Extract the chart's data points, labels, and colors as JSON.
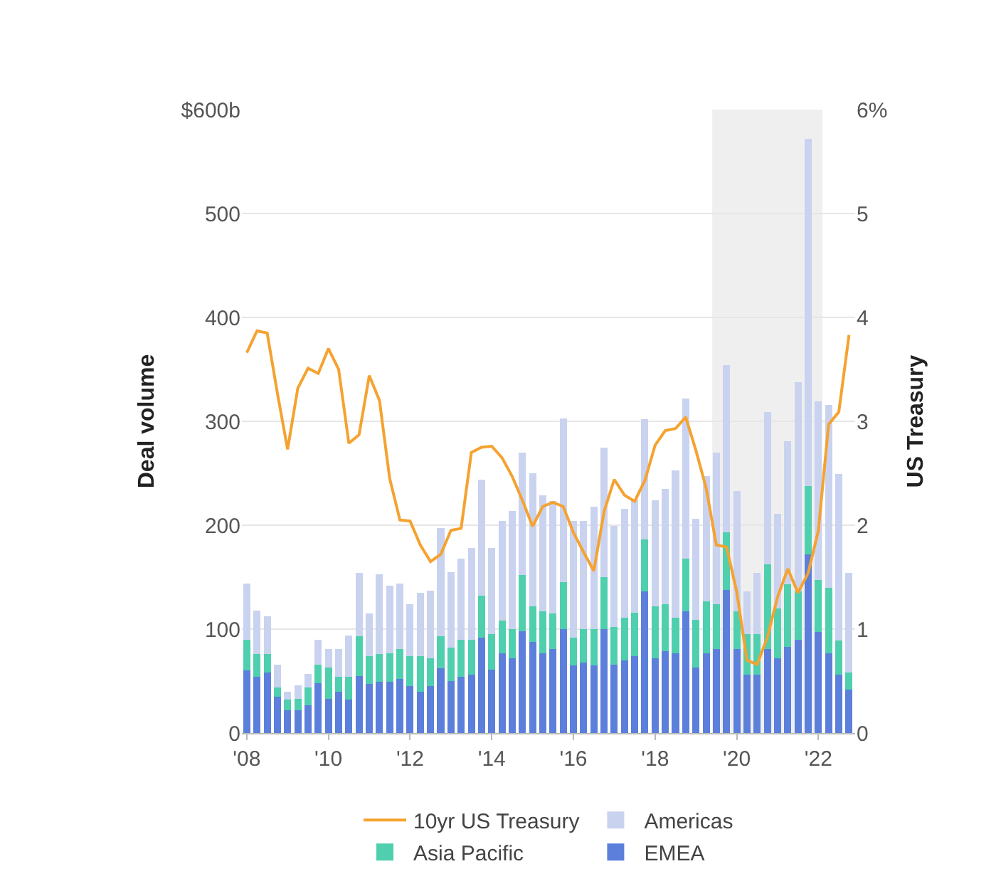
{
  "chart_data": {
    "type": "bar",
    "stacked": true,
    "x": [
      2008,
      2008.25,
      2008.5,
      2008.75,
      2009,
      2009.25,
      2009.5,
      2009.75,
      2010,
      2010.25,
      2010.5,
      2010.75,
      2011,
      2011.25,
      2011.5,
      2011.75,
      2012,
      2012.25,
      2012.5,
      2012.75,
      2013,
      2013.25,
      2013.5,
      2013.75,
      2014,
      2014.25,
      2014.5,
      2014.75,
      2015,
      2015.25,
      2015.5,
      2015.75,
      2016,
      2016.25,
      2016.5,
      2016.75,
      2017,
      2017.25,
      2017.5,
      2017.75,
      2018,
      2018.25,
      2018.5,
      2018.75,
      2019,
      2019.25,
      2019.5,
      2019.75,
      2020,
      2020.25,
      2020.5,
      2020.75,
      2021,
      2021.25,
      2021.5,
      2021.75,
      2022,
      2022.25,
      2022.5,
      2022.75
    ],
    "series": [
      {
        "name": "EMEA",
        "color": "#5b7fdb",
        "values": [
          60,
          54,
          58,
          35,
          22,
          22,
          27,
          48,
          33,
          40,
          32,
          55,
          47,
          49,
          49,
          52,
          45,
          40,
          45,
          62,
          50,
          54,
          56,
          92,
          61,
          77,
          72,
          98,
          88,
          77,
          81,
          100,
          65,
          68,
          65,
          100,
          66,
          70,
          74,
          136,
          72,
          79,
          77,
          117,
          63,
          77,
          81,
          138,
          81,
          56,
          56,
          81,
          72,
          83,
          90,
          172,
          97,
          77,
          56,
          42
        ]
      },
      {
        "name": "Asia Pacific",
        "color": "#4fcfae",
        "values": [
          30,
          22,
          18,
          9,
          10,
          11,
          17,
          18,
          30,
          14,
          22,
          38,
          27,
          27,
          28,
          29,
          29,
          34,
          27,
          31,
          32,
          36,
          34,
          40,
          34,
          31,
          28,
          54,
          34,
          40,
          34,
          45,
          27,
          32,
          35,
          50,
          36,
          41,
          42,
          50,
          50,
          45,
          34,
          51,
          46,
          50,
          43,
          55,
          36,
          39,
          39,
          81,
          48,
          60,
          46,
          66,
          50,
          63,
          33,
          16
        ]
      },
      {
        "name": "Americas",
        "color": "#c9d3f0",
        "values": [
          54,
          42,
          36,
          22,
          8,
          13,
          13,
          24,
          18,
          27,
          40,
          61,
          41,
          77,
          65,
          63,
          50,
          61,
          65,
          104,
          73,
          78,
          88,
          112,
          83,
          96,
          114,
          118,
          128,
          112,
          108,
          158,
          112,
          104,
          118,
          125,
          97,
          105,
          109,
          116,
          102,
          111,
          142,
          154,
          97,
          120,
          146,
          161,
          116,
          41,
          59,
          147,
          91,
          138,
          202,
          334,
          172,
          176,
          160,
          96
        ]
      },
      {
        "name": "10yr US Treasury",
        "type": "line",
        "axis": "y2",
        "color": "#f5a230",
        "values": [
          3.66,
          3.87,
          3.85,
          3.27,
          2.73,
          3.32,
          3.51,
          3.46,
          3.7,
          3.5,
          2.79,
          2.87,
          3.44,
          3.2,
          2.45,
          2.05,
          2.04,
          1.81,
          1.65,
          1.72,
          1.95,
          1.97,
          2.7,
          2.75,
          2.76,
          2.65,
          2.47,
          2.24,
          1.99,
          2.18,
          2.22,
          2.18,
          1.93,
          1.74,
          1.56,
          2.13,
          2.44,
          2.29,
          2.23,
          2.43,
          2.77,
          2.91,
          2.93,
          3.04,
          2.72,
          2.36,
          1.81,
          1.79,
          1.36,
          0.7,
          0.66,
          0.92,
          1.31,
          1.58,
          1.35,
          1.54,
          1.95,
          2.97,
          3.09,
          3.83
        ]
      }
    ],
    "xlim": [
      2007.88,
      2022.9
    ],
    "xticks": [
      {
        "value": 2008,
        "label": "'08"
      },
      {
        "value": 2010,
        "label": "'10"
      },
      {
        "value": 2012,
        "label": "'12"
      },
      {
        "value": 2014,
        "label": "'14"
      },
      {
        "value": 2016,
        "label": "'16"
      },
      {
        "value": 2018,
        "label": "'18"
      },
      {
        "value": 2020,
        "label": "'20"
      },
      {
        "value": 2022,
        "label": "'22"
      }
    ],
    "ylim": [
      0,
      600
    ],
    "yticks": [
      0,
      100,
      200,
      300,
      400,
      500,
      {
        "value": 600,
        "label": "$600b"
      }
    ],
    "y2lim": [
      0,
      6
    ],
    "y2ticks": [
      0,
      1,
      2,
      3,
      4,
      5,
      {
        "value": 6,
        "label": "6%"
      }
    ],
    "ylabel": "Deal volume",
    "y2label": "US Treasury",
    "bands": [
      {
        "axis": "x",
        "from": 2019.4,
        "to": 2022.1,
        "color": "#efefef"
      }
    ],
    "grid": "y",
    "legend": "bottom"
  }
}
